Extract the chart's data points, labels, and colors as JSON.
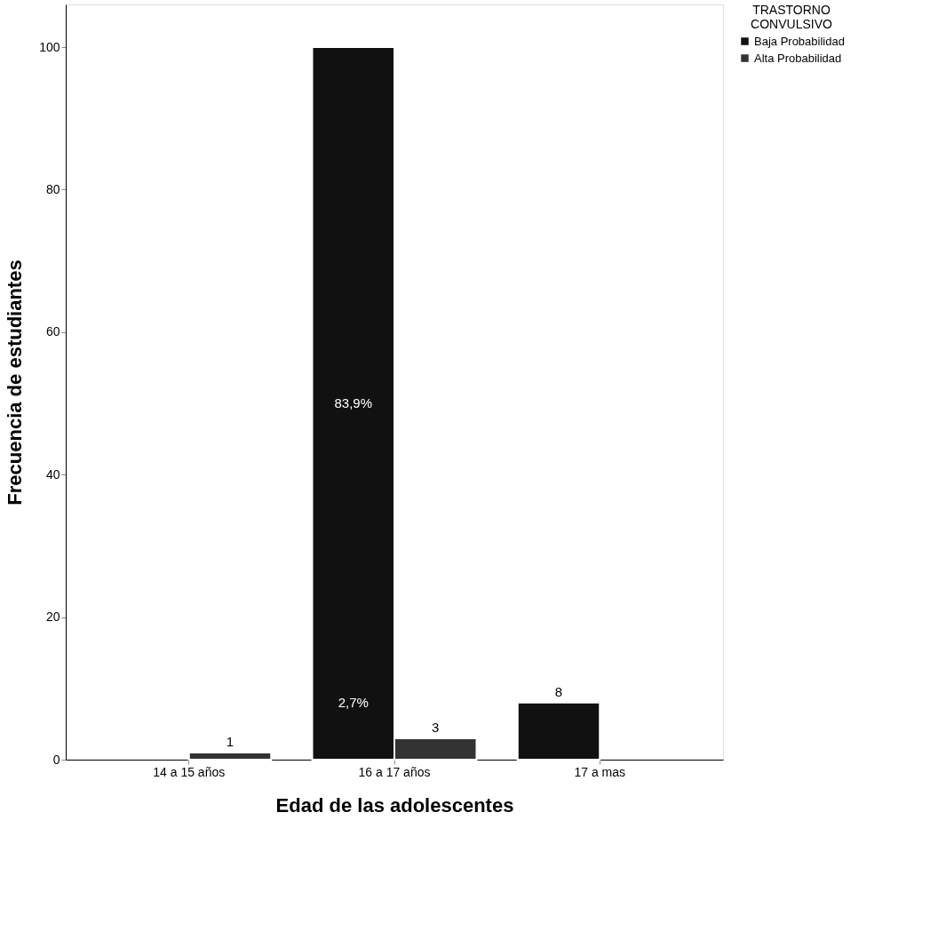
{
  "chart_data": {
    "type": "bar",
    "xlabel": "Edad de las adolescentes",
    "ylabel": "Frecuencia de estudiantes",
    "legend_title": "TRASTORNO CONVULSIVO",
    "legend": "top right",
    "grid": false,
    "categories": [
      "14 a 15 años",
      "16 a 17 años",
      "17 a mas"
    ],
    "series": [
      {
        "name": "Baja Probabilidad",
        "color": "#111111",
        "values": [
          null,
          100,
          8
        ],
        "value_labels": [
          null,
          null,
          "8"
        ]
      },
      {
        "name": "Alta Probabilidad",
        "color": "#333333",
        "values": [
          1,
          3,
          null
        ],
        "value_labels": [
          "1",
          "3",
          null
        ]
      }
    ],
    "annotations": [
      {
        "text": "83,9%",
        "x": "16 a 17 años",
        "y": 50
      },
      {
        "text": "2,7%",
        "x": "16 a 17 años",
        "y": 8
      }
    ],
    "ylim": [
      0,
      106
    ],
    "yticks": [
      0,
      20,
      40,
      60,
      80,
      100
    ]
  }
}
